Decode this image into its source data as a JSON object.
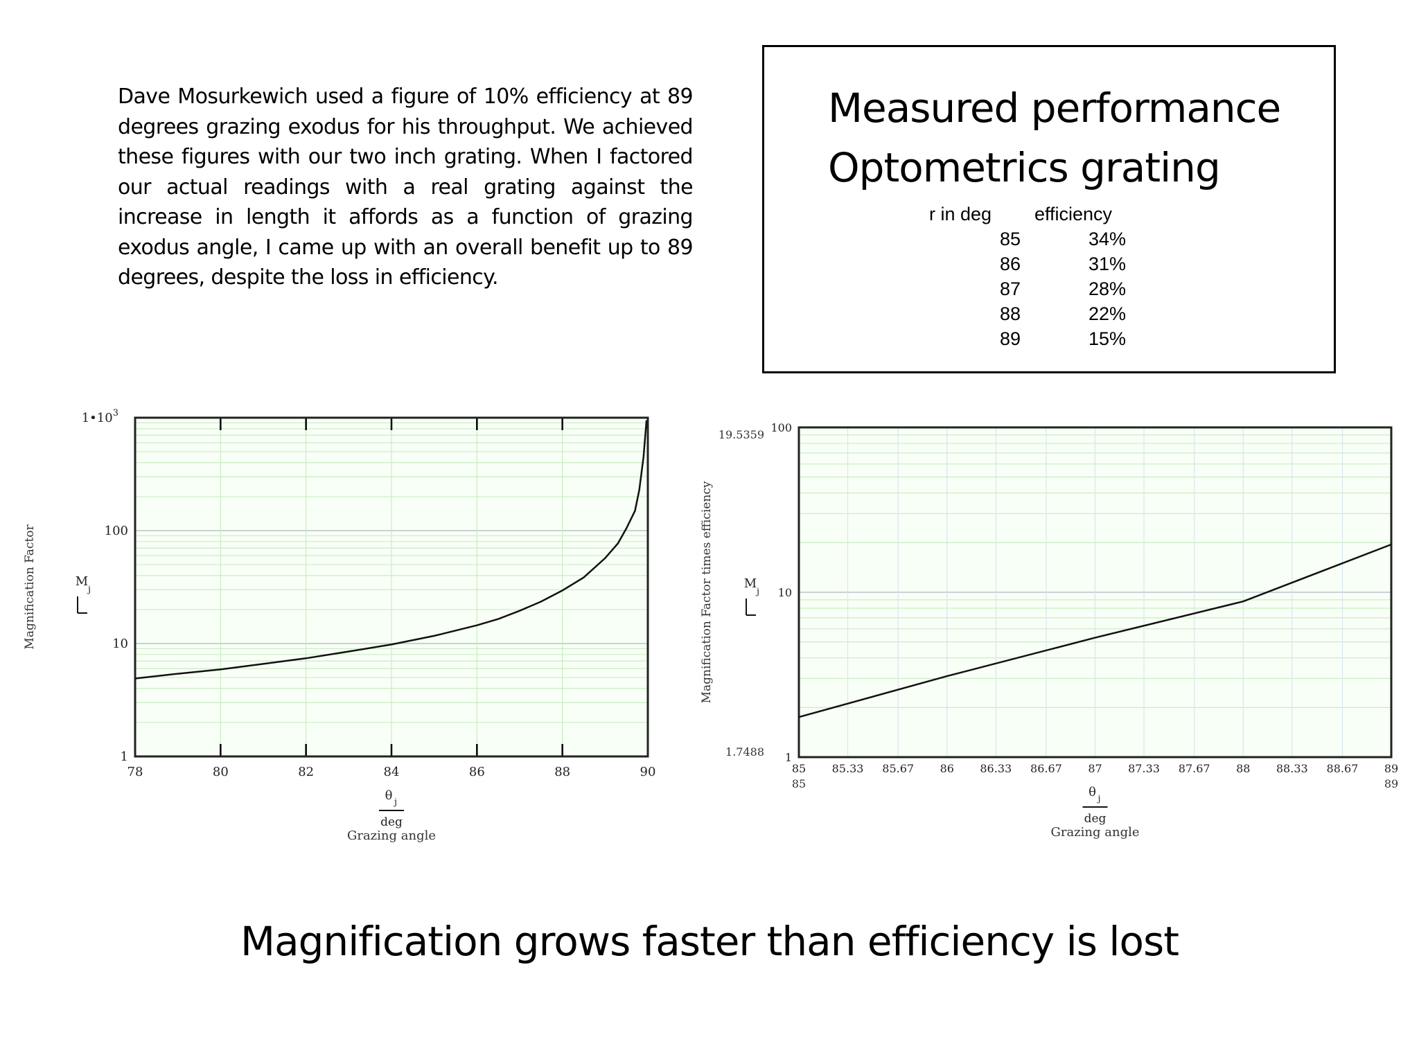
{
  "intro": {
    "text": "Dave Mosurkewich used a figure of 10% efficiency at 89 degrees grazing exodus for his throughput. We achieved these figures with our two inch grating. When I factored our actual readings with a real grating against the increase in length it affords as a function of grazing exodus angle, I came up with an overall benefit up to 89 degrees, despite the loss in efficiency."
  },
  "performance": {
    "title_line1": "Measured performance",
    "title_line2": "Optometrics grating",
    "col_headers": [
      "r in deg",
      "efficiency"
    ],
    "rows": [
      {
        "deg": "85",
        "eff": "34%"
      },
      {
        "deg": "86",
        "eff": "31%"
      },
      {
        "deg": "87",
        "eff": "28%"
      },
      {
        "deg": "88",
        "eff": "22%"
      },
      {
        "deg": "89",
        "eff": "15%"
      }
    ]
  },
  "conclusion": "Magnification grows faster than efficiency is lost",
  "chart_data": [
    {
      "type": "line",
      "ylabel": "Magnification Factor",
      "y_var": "M",
      "y_sub": "j",
      "x_var": "θ",
      "x_sub": "j",
      "x_unit": "deg",
      "xlabel": "Grazing angle",
      "log_y": true,
      "xlim": [
        78,
        90
      ],
      "ylim": [
        1,
        1000
      ],
      "xticks": [
        "78",
        "80",
        "82",
        "84",
        "86",
        "88",
        "90"
      ],
      "ytick_values": [
        1,
        10,
        100,
        1000
      ],
      "ytick_labels": [
        "1",
        "10",
        "100",
        "1•10"
      ],
      "ytick_top_sup": "3",
      "grid": true,
      "series": [
        {
          "x": [
            78,
            79,
            80,
            81,
            82,
            83,
            84,
            85,
            86,
            86.5,
            87,
            87.5,
            88,
            88.5,
            89,
            89.3,
            89.5,
            89.7,
            89.8,
            89.9,
            89.97
          ],
          "y": [
            4.9,
            5.4,
            5.9,
            6.6,
            7.4,
            8.5,
            9.8,
            11.7,
            14.5,
            16.5,
            19.5,
            23.5,
            29.5,
            38.5,
            57,
            77,
            105,
            150,
            230,
            450,
            950
          ]
        }
      ]
    },
    {
      "type": "line",
      "ylabel": "Magnification Factor times efficiency",
      "y_var": "M",
      "y_sub": "j",
      "x_var": "θ",
      "x_sub": "j",
      "x_unit": "deg",
      "xlabel": "Grazing angle",
      "log_y": true,
      "xlim": [
        85,
        89
      ],
      "ylim": [
        1,
        100
      ],
      "xticks": [
        "85",
        "85.33",
        "85.67",
        "86",
        "86.33",
        "86.67",
        "87",
        "87.33",
        "87.67",
        "88",
        "88.33",
        "88.67",
        "89"
      ],
      "xrange_labels": [
        "85",
        "89"
      ],
      "ytick_values": [
        1,
        10,
        100
      ],
      "ytick_labels": [
        "1",
        "10",
        "100"
      ],
      "yrange_labels": [
        "1.7488",
        "19.5359"
      ],
      "grid": true,
      "series": [
        {
          "x": [
            85,
            86,
            87,
            88,
            89
          ],
          "y": [
            1.75,
            3.1,
            5.3,
            8.8,
            19.5
          ]
        }
      ]
    }
  ]
}
